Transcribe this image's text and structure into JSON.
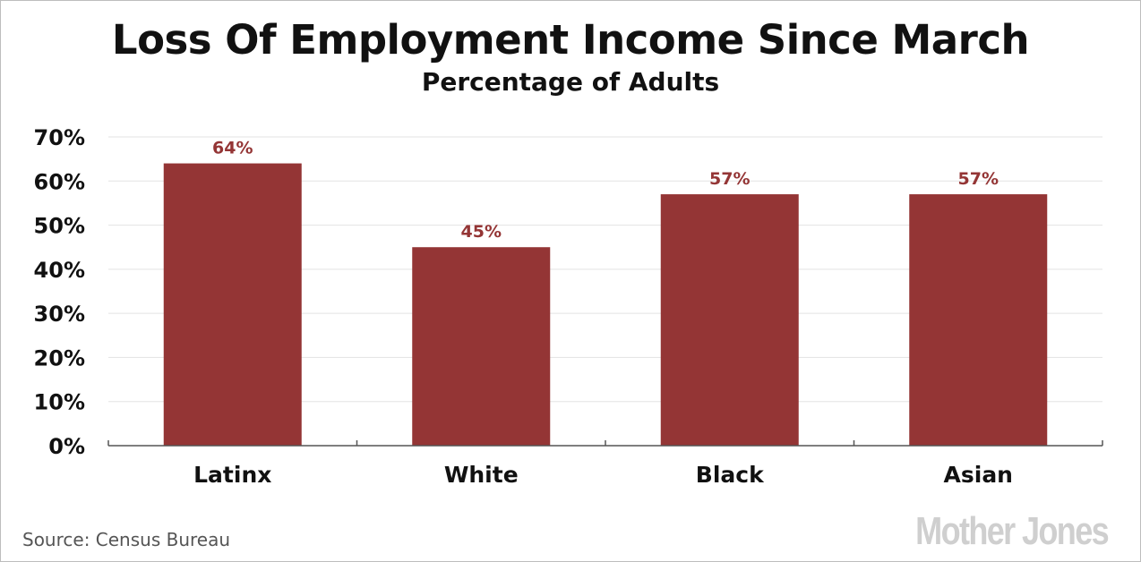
{
  "chart_data": {
    "type": "bar",
    "title": "Loss Of Employment Income Since March",
    "subtitle": "Percentage of Adults",
    "categories": [
      "Latinx",
      "White",
      "Black",
      "Asian"
    ],
    "values": [
      64,
      45,
      57,
      57
    ],
    "data_labels": [
      "64%",
      "45%",
      "57%",
      "57%"
    ],
    "ylim": [
      0,
      70
    ],
    "yticks": [
      0,
      10,
      20,
      30,
      40,
      50,
      60,
      70
    ],
    "ytick_labels": [
      "0%",
      "10%",
      "20%",
      "30%",
      "40%",
      "50%",
      "60%",
      "70%"
    ],
    "grid": true,
    "bar_color": "#943535",
    "label_color": "#943535",
    "source": "Source: Census Bureau",
    "logo": "Mother Jones"
  }
}
